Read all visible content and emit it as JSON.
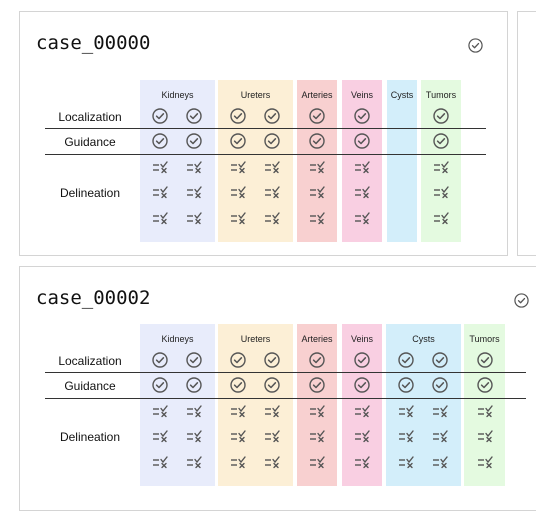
{
  "colors": {
    "kidneys": "#e8ecfb",
    "ureters": "#fcefd6",
    "arteries": "#f8d0d0",
    "veins": "#f9cfe2",
    "cysts": "#d3eefa",
    "tumors": "#e4fae0",
    "icon": "#555555"
  },
  "icons": {
    "check": "check-circle-icon",
    "delineate": "delineation-list-icon",
    "status": "status-check-circle-icon"
  },
  "row_labels": [
    "Localization",
    "Guidance",
    "Delineation"
  ],
  "cases": [
    {
      "id": "case_00000",
      "columns": [
        {
          "label": "Kidneys",
          "key": "kidneys"
        },
        {
          "label": "Ureters",
          "key": "ureters"
        },
        {
          "label": "Arteries",
          "key": "arteries"
        },
        {
          "label": "Veins",
          "key": "veins"
        },
        {
          "label": "Cysts",
          "key": "cysts"
        },
        {
          "label": "Tumors",
          "key": "tumors"
        }
      ]
    },
    {
      "id": "case_00002",
      "columns": [
        {
          "label": "Kidneys",
          "key": "kidneys"
        },
        {
          "label": "Ureters",
          "key": "ureters"
        },
        {
          "label": "Arteries",
          "key": "arteries"
        },
        {
          "label": "Veins",
          "key": "veins"
        },
        {
          "label": "Cysts",
          "key": "cysts"
        },
        {
          "label": "Tumors",
          "key": "tumors"
        }
      ]
    }
  ]
}
